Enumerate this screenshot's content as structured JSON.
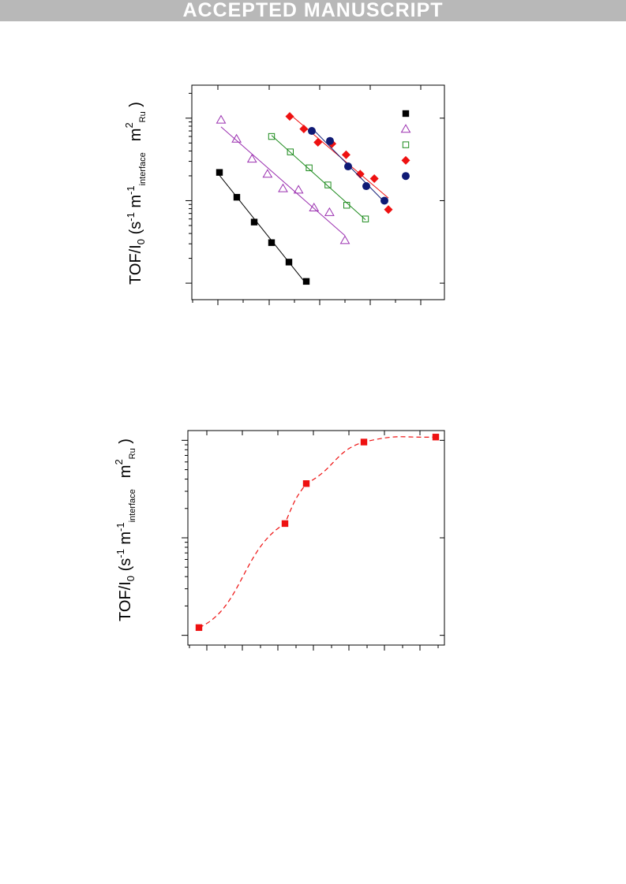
{
  "banner": {
    "text": "ACCEPTED MANUSCRIPT"
  },
  "chart_data": [
    {
      "type": "scatter",
      "ylabel": {
        "main": "TOF/I",
        "sub0": "0",
        "open": " (s",
        "sup1": "-1",
        "m": " m",
        "sup2": "-1",
        "sub_interface": "interface",
        "m2": "m",
        "sup3": "2",
        "sub_ru": "Ru",
        "close": " )"
      },
      "yscale": "log",
      "series": [
        {
          "marker": "filled-square",
          "color": "#000000",
          "fit": "solid",
          "x": [
            1,
            2,
            3,
            4,
            5,
            6
          ],
          "y": [
            2.2,
            1.1,
            0.55,
            0.31,
            0.18,
            0.105
          ]
        },
        {
          "marker": "open-triangle",
          "color": "#9b30b0",
          "fit": "solid",
          "x": [
            1,
            2,
            3,
            4,
            5,
            6,
            7,
            8,
            9
          ],
          "y": [
            9.5,
            5.6,
            3.2,
            2.1,
            1.4,
            1.35,
            0.82,
            0.72,
            0.33
          ]
        },
        {
          "marker": "open-square",
          "color": "#1c8a1c",
          "fit": "solid",
          "x": [
            1,
            2,
            3,
            4,
            5,
            6
          ],
          "y": [
            6.0,
            3.9,
            2.5,
            1.55,
            0.88,
            0.6
          ]
        },
        {
          "marker": "filled-diamond",
          "color": "#ee1111",
          "fit": "solid",
          "x": [
            1,
            2,
            3,
            4,
            5,
            6,
            7,
            8
          ],
          "y": [
            10.5,
            7.4,
            5.1,
            4.9,
            3.6,
            2.1,
            1.85,
            0.78
          ]
        },
        {
          "marker": "filled-circle",
          "color": "#0f1a75",
          "fit": "solid",
          "x": [
            1,
            2,
            3,
            4,
            5
          ],
          "y": [
            7.0,
            5.3,
            2.6,
            1.5,
            1.0
          ]
        }
      ]
    },
    {
      "type": "scatter",
      "ylabel": {
        "main": "TOF/I",
        "sub0": "0",
        "open": " (s",
        "sup1": "-1",
        "m": " m",
        "sup2": "-1",
        "sub_interface": "interface",
        "m2": "m",
        "sup3": "2",
        "sub_ru": "Ru",
        "close": " )"
      },
      "yscale": "log",
      "series": [
        {
          "marker": "filled-square",
          "color": "#ee1111",
          "fit": "dashed",
          "x": [
            1,
            2,
            3,
            4,
            5
          ],
          "y": [
            0.012,
            0.14,
            0.36,
            0.96,
            1.08
          ]
        }
      ]
    }
  ]
}
